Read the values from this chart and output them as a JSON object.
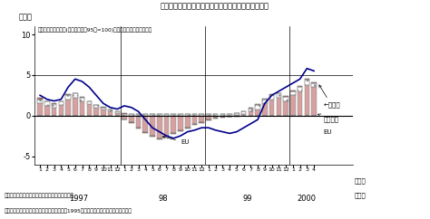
{
  "title": "第１－１－７（１）図　輸出数量の地域別寄与度分解",
  "ylabel": "（％）",
  "xlabel_month": "（月）",
  "xlabel_year": "（年）",
  "annotation_line": "対世界輸出数量指数(季節調整値、95年=100)３ヶ月移動平均３ヶ月前比",
  "note1": "（備考）　１．大蔵省「貿易統計」により作成。",
  "note2": "　　　　　２．寄与度分解は輸出数量指数を1995年輸出金額でウエイトづけし作成。",
  "ylim": [
    -6,
    11
  ],
  "yticks": [
    -5,
    0,
    5,
    10
  ],
  "year_labels": [
    "1997",
    "98",
    "99",
    "2000"
  ],
  "color_asia": "#d4a0a0",
  "color_america": "#ffffff",
  "color_eu": "#b03030",
  "color_line": "#00008b",
  "n_bars": 40,
  "month_labels": [
    1,
    2,
    3,
    4,
    5,
    6,
    7,
    8,
    9,
    10,
    11,
    12,
    1,
    2,
    3,
    4,
    5,
    6,
    7,
    8,
    9,
    10,
    11,
    12,
    1,
    2,
    3,
    4,
    5,
    6,
    7,
    8,
    9,
    10,
    11,
    12,
    1,
    2,
    3,
    4
  ],
  "asia": [
    1.5,
    1.2,
    1.0,
    1.3,
    2.0,
    2.2,
    1.8,
    1.4,
    1.0,
    0.8,
    0.5,
    0.3,
    -0.5,
    -0.8,
    -1.5,
    -2.0,
    -2.5,
    -2.8,
    -2.5,
    -2.2,
    -1.8,
    -1.5,
    -1.0,
    -0.8,
    -0.5,
    -0.3,
    -0.2,
    -0.1,
    0.1,
    0.2,
    0.5,
    0.8,
    1.5,
    2.0,
    2.2,
    1.8,
    2.5,
    3.0,
    3.8,
    3.5
  ],
  "america": [
    0.5,
    0.5,
    0.4,
    0.4,
    0.5,
    0.5,
    0.4,
    0.3,
    0.3,
    0.2,
    0.2,
    0.2,
    0.2,
    0.2,
    0.2,
    0.2,
    0.2,
    0.2,
    0.2,
    0.2,
    0.2,
    0.2,
    0.2,
    0.2,
    0.2,
    0.2,
    0.2,
    0.2,
    0.2,
    0.3,
    0.4,
    0.5,
    0.5,
    0.5,
    0.5,
    0.5,
    0.5,
    0.5,
    0.6,
    0.5
  ],
  "eu": [
    0.2,
    0.1,
    0.1,
    0.1,
    0.1,
    0.1,
    0.1,
    0.1,
    0.05,
    0.05,
    0.05,
    0.05,
    0.05,
    -0.1,
    -0.1,
    -0.1,
    -0.1,
    -0.1,
    -0.1,
    -0.1,
    -0.1,
    -0.1,
    -0.1,
    -0.1,
    -0.1,
    -0.1,
    -0.1,
    -0.1,
    -0.1,
    0.0,
    0.05,
    0.1,
    0.1,
    0.1,
    0.1,
    0.1,
    0.1,
    0.1,
    0.1,
    0.1
  ],
  "line_data": [
    2.5,
    2.0,
    1.8,
    2.0,
    3.5,
    4.5,
    4.2,
    3.5,
    2.5,
    1.5,
    1.0,
    0.8,
    1.2,
    1.0,
    0.5,
    -0.5,
    -1.5,
    -2.0,
    -2.5,
    -2.8,
    -2.5,
    -2.0,
    -1.8,
    -1.5,
    -1.5,
    -1.8,
    -2.0,
    -2.2,
    -2.0,
    -1.5,
    -1.0,
    -0.5,
    1.5,
    2.5,
    3.0,
    3.5,
    4.0,
    4.5,
    5.8,
    5.5
  ]
}
